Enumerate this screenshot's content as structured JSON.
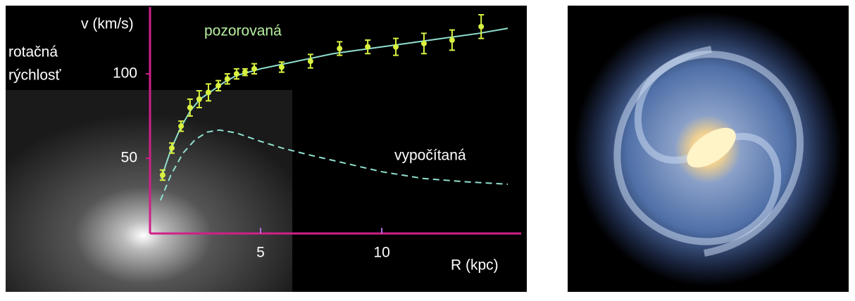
{
  "chart_data": {
    "type": "line",
    "ylabel": "v (km/s)",
    "ylabel_side": [
      "rotačná",
      "rýchlosť"
    ],
    "xlabel": "R (kpc)",
    "xlim": [
      0.44,
      15.75
    ],
    "ylim": [
      5.4,
      139.6
    ],
    "xticks": [
      5,
      10
    ],
    "yticks": [
      50,
      100
    ],
    "axis_color": "#d0208a",
    "tick_color": "#b070e0",
    "series": [
      {
        "name": "pozorovaná",
        "color": "#d8f040",
        "x": [
          0.96,
          1.34,
          1.72,
          2.09,
          2.47,
          2.85,
          3.26,
          3.63,
          4.01,
          4.36,
          4.74,
          5.87,
          7.06,
          8.26,
          9.42,
          10.58,
          11.74,
          12.9,
          14.1
        ],
        "values": [
          40,
          56,
          69,
          80,
          85,
          89,
          93,
          97,
          100,
          101,
          103,
          104,
          107.5,
          115,
          116,
          116,
          118,
          120,
          128
        ],
        "errors": [
          3,
          3,
          3,
          5,
          5,
          5,
          3,
          3,
          3,
          2,
          3,
          3,
          4,
          4,
          4,
          5,
          6,
          6,
          7
        ]
      },
      {
        "color": "#90e0d0",
        "dash": false,
        "x": [
          0.9,
          1.3,
          1.7,
          2.1,
          2.5,
          3,
          3.5,
          4,
          5,
          6,
          7,
          8,
          9,
          10,
          11,
          12,
          13,
          14,
          15.2
        ],
        "values": [
          38,
          55,
          68,
          78,
          85,
          90,
          95,
          99,
          103,
          106,
          109,
          112,
          114,
          116,
          118,
          120,
          122,
          124,
          127
        ]
      },
      {
        "name": "vypočítaná",
        "color": "#90e0d0",
        "dash": true,
        "x": [
          0.87,
          1.3,
          1.8,
          2.3,
          2.8,
          3.3,
          4,
          5,
          5.9,
          7,
          8.8,
          10,
          11.7,
          13.5,
          15.2
        ],
        "values": [
          25,
          40,
          53,
          61,
          65.5,
          66.7,
          65,
          60,
          56,
          52,
          46,
          42,
          38,
          36,
          34.6
        ]
      }
    ]
  }
}
